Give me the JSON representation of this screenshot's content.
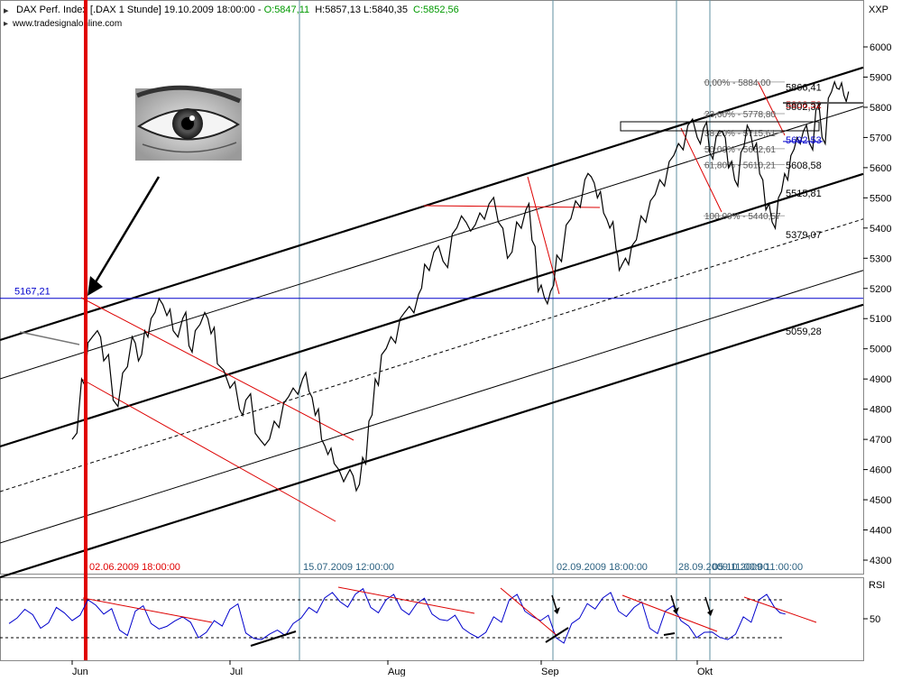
{
  "header": {
    "symbol": "DAX Perf. Index [.DAX  1 Stunde] 19.10.2009 18:00:00 -",
    "open": "O:5847,11",
    "hlc": "H:5857,13 L:5840,35",
    "close": "C:5852,56",
    "website": "www.tradesignalonline.com"
  },
  "colors": {
    "price": "#000000",
    "rsi": "#0000cc",
    "trend": "#dd0000",
    "marker": "#e00000",
    "vline": "#5f8fa0",
    "hline": "#0000cc",
    "channel": "#000000",
    "open_color": "#009900",
    "close_color": "#009900"
  },
  "chart_data": [
    {
      "type": "line",
      "title": "DAX Perf. Index [.DAX  1 Stunde]",
      "y_axis_label": "XXP",
      "ylim": [
        4260,
        6020
      ],
      "yticks": [
        "6000",
        "5900",
        "5800",
        "5700",
        "5600",
        "5500",
        "5400",
        "5300",
        "5200",
        "5100",
        "5000",
        "4900",
        "4800",
        "4700",
        "4600",
        "4500",
        "4400",
        "4300"
      ],
      "x_ticks": [
        "Jun",
        "Jul",
        "Aug",
        "Sep",
        "Okt"
      ],
      "grid": false,
      "series": [
        {
          "role": "price",
          "points": [
            [
              0,
              4700
            ],
            [
              0.06,
              4900
            ],
            [
              0.1,
              5020
            ],
            [
              0.16,
              5060
            ],
            [
              0.2,
              4960
            ],
            [
              0.26,
              4830
            ],
            [
              0.32,
              4920
            ],
            [
              0.38,
              5040
            ],
            [
              0.42,
              4960
            ],
            [
              0.46,
              5060
            ],
            [
              0.5,
              5100
            ],
            [
              0.55,
              5167
            ],
            [
              0.6,
              5110
            ],
            [
              0.64,
              5060
            ],
            [
              0.7,
              5100
            ],
            [
              0.74,
              5010
            ],
            [
              0.78,
              5060
            ],
            [
              0.84,
              5120
            ],
            [
              0.88,
              5050
            ],
            [
              0.92,
              4950
            ],
            [
              1.0,
              4870
            ],
            [
              1.06,
              4800
            ],
            [
              1.1,
              4830
            ],
            [
              1.16,
              4720
            ],
            [
              1.22,
              4680
            ],
            [
              1.28,
              4760
            ],
            [
              1.34,
              4820
            ],
            [
              1.4,
              4870
            ],
            [
              1.46,
              4900
            ],
            [
              1.5,
              4860
            ],
            [
              1.54,
              4780
            ],
            [
              1.58,
              4700
            ],
            [
              1.62,
              4650
            ],
            [
              1.66,
              4620
            ],
            [
              1.72,
              4560
            ],
            [
              1.76,
              4600
            ],
            [
              1.8,
              4530
            ],
            [
              1.84,
              4640
            ],
            [
              1.88,
              4760
            ],
            [
              1.92,
              4900
            ],
            [
              1.96,
              4980
            ],
            [
              2.02,
              5040
            ],
            [
              2.08,
              5100
            ],
            [
              2.14,
              5140
            ],
            [
              2.2,
              5180
            ],
            [
              2.24,
              5280
            ],
            [
              2.3,
              5320
            ],
            [
              2.36,
              5290
            ],
            [
              2.42,
              5380
            ],
            [
              2.48,
              5440
            ],
            [
              2.54,
              5390
            ],
            [
              2.6,
              5450
            ],
            [
              2.66,
              5480
            ],
            [
              2.72,
              5420
            ],
            [
              2.78,
              5300
            ],
            [
              2.84,
              5420
            ],
            [
              2.9,
              5460
            ],
            [
              2.94,
              5360
            ],
            [
              2.98,
              5190
            ],
            [
              3.02,
              5170
            ],
            [
              3.06,
              5190
            ],
            [
              3.1,
              5310
            ],
            [
              3.16,
              5410
            ],
            [
              3.22,
              5490
            ],
            [
              3.28,
              5560
            ],
            [
              3.32,
              5570
            ],
            [
              3.36,
              5500
            ],
            [
              3.4,
              5450
            ],
            [
              3.44,
              5400
            ],
            [
              3.48,
              5330
            ],
            [
              3.5,
              5260
            ],
            [
              3.54,
              5300
            ],
            [
              3.58,
              5340
            ],
            [
              3.64,
              5440
            ],
            [
              3.7,
              5490
            ],
            [
              3.76,
              5560
            ],
            [
              3.82,
              5620
            ],
            [
              3.88,
              5680
            ],
            [
              3.94,
              5740
            ],
            [
              4.0,
              5700
            ],
            [
              4.04,
              5730
            ],
            [
              4.08,
              5650
            ],
            [
              4.12,
              5700
            ],
            [
              4.16,
              5720
            ],
            [
              4.2,
              5600
            ],
            [
              4.24,
              5560
            ],
            [
              4.28,
              5650
            ],
            [
              4.32,
              5740
            ],
            [
              4.36,
              5660
            ],
            [
              4.4,
              5580
            ],
            [
              4.44,
              5460
            ],
            [
              4.48,
              5420
            ],
            [
              4.52,
              5500
            ],
            [
              4.56,
              5580
            ],
            [
              4.6,
              5640
            ],
            [
              4.64,
              5700
            ],
            [
              4.68,
              5720
            ],
            [
              4.72,
              5680
            ],
            [
              4.76,
              5790
            ],
            [
              4.8,
              5700
            ],
            [
              4.84,
              5830
            ],
            [
              4.88,
              5884
            ],
            [
              4.91,
              5860
            ],
            [
              4.94,
              5840
            ],
            [
              4.97,
              5852
            ]
          ]
        }
      ],
      "levels": [
        {
          "label": "5866,41",
          "value": 5866.41
        },
        {
          "label": "5808,52",
          "value": 5808.52
        },
        {
          "label": "5802,37",
          "value": 5802.37
        },
        {
          "label": "5692,53",
          "value": 5692.53
        },
        {
          "label": "5608,58",
          "value": 5608.58
        },
        {
          "label": "5515,81",
          "value": 5515.81
        },
        {
          "label": "5379,07",
          "value": 5379.07
        },
        {
          "label": "5059,28",
          "value": 5059.28
        },
        {
          "label": "5167,21",
          "value": 5167.21
        }
      ],
      "fibonacci": [
        {
          "label": "0,00% - 5884,00",
          "value": 5884.0
        },
        {
          "label": "23,60% - 5778,80",
          "value": 5778.8
        },
        {
          "label": "38,20% - 5715,61",
          "value": 5715.61
        },
        {
          "label": "50,00% - 5662,61",
          "value": 5662.61
        },
        {
          "label": "61,80% - 5610,21",
          "value": 5610.21
        },
        {
          "label": "100,00% - 5440,57",
          "value": 5440.57
        }
      ],
      "annotations": [
        {
          "label": "02.06.2009 18:00:00",
          "x": 0.55
        },
        {
          "label": "15.07.2009 12:00:00",
          "x": 2.0
        },
        {
          "label": "02.09.2009 18:00:00",
          "x": 3.52
        },
        {
          "label": "28.09.2009 11:00:00",
          "x": 4.45
        },
        {
          "label": "05.10.2009 11:00:00",
          "x": 4.65
        }
      ]
    },
    {
      "type": "line",
      "y_axis_label": "RSI",
      "ylim": [
        0,
        100
      ],
      "yticks": [
        "50"
      ],
      "overbought": 70,
      "oversold": 30,
      "series": [
        {
          "role": "rsi",
          "points": [
            [
              0,
              45
            ],
            [
              0.1,
              60
            ],
            [
              0.2,
              40
            ],
            [
              0.3,
              62
            ],
            [
              0.4,
              48
            ],
            [
              0.5,
              70
            ],
            [
              0.6,
              55
            ],
            [
              0.7,
              38
            ],
            [
              0.8,
              58
            ],
            [
              0.9,
              45
            ],
            [
              1.0,
              42
            ],
            [
              1.1,
              52
            ],
            [
              1.2,
              30
            ],
            [
              1.3,
              48
            ],
            [
              1.4,
              60
            ],
            [
              1.5,
              35
            ],
            [
              1.6,
              28
            ],
            [
              1.7,
              38
            ],
            [
              1.8,
              45
            ],
            [
              1.9,
              62
            ],
            [
              2.0,
              72
            ],
            [
              2.1,
              68
            ],
            [
              2.2,
              76
            ],
            [
              2.3,
              62
            ],
            [
              2.4,
              70
            ],
            [
              2.5,
              60
            ],
            [
              2.6,
              66
            ],
            [
              2.7,
              55
            ],
            [
              2.8,
              48
            ],
            [
              2.9,
              40
            ],
            [
              3.0,
              30
            ],
            [
              3.1,
              52
            ],
            [
              3.2,
              70
            ],
            [
              3.3,
              58
            ],
            [
              3.4,
              48
            ],
            [
              3.5,
              30
            ],
            [
              3.6,
              45
            ],
            [
              3.7,
              66
            ],
            [
              3.8,
              72
            ],
            [
              3.9,
              58
            ],
            [
              4.0,
              62
            ],
            [
              4.1,
              40
            ],
            [
              4.2,
              58
            ],
            [
              4.3,
              48
            ],
            [
              4.4,
              30
            ],
            [
              4.5,
              36
            ],
            [
              4.6,
              28
            ],
            [
              4.7,
              52
            ],
            [
              4.8,
              70
            ],
            [
              4.9,
              62
            ],
            [
              4.97,
              55
            ]
          ]
        }
      ]
    }
  ]
}
